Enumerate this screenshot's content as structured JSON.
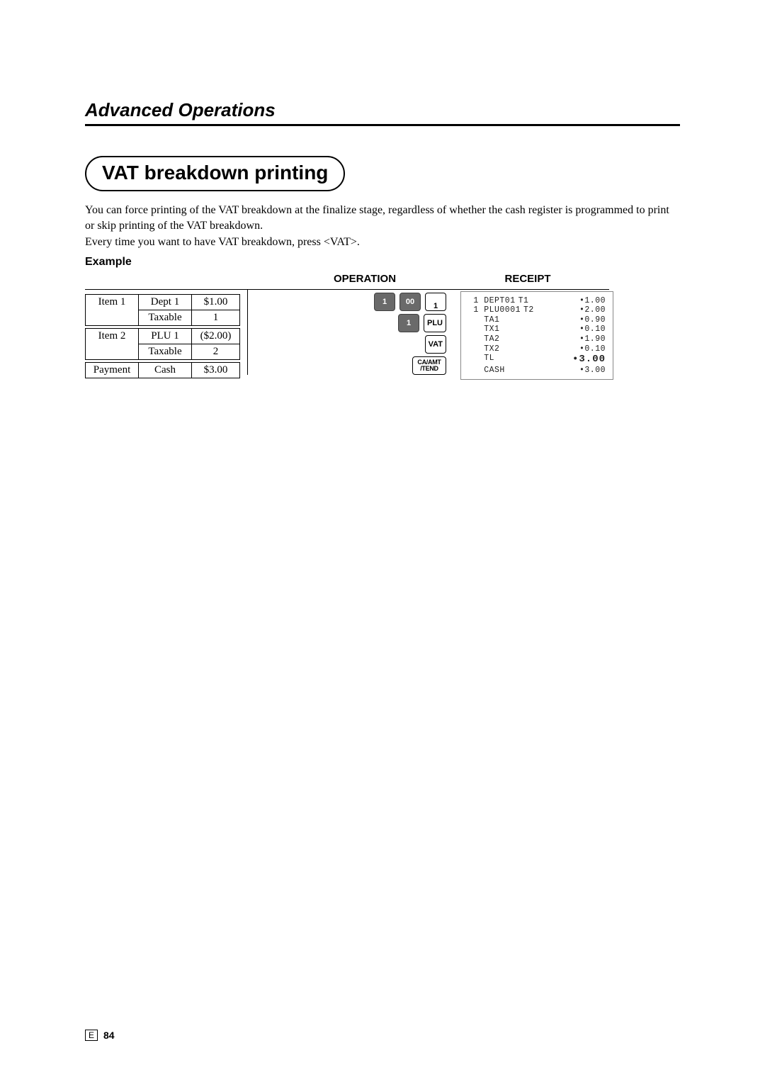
{
  "section_header": "Advanced Operations",
  "title": "VAT breakdown printing",
  "paragraph1": "You can force printing of the VAT breakdown at the finalize stage, regardless of whether the cash register is programmed to print or skip printing of the VAT breakdown.",
  "paragraph2": "Every time you want to have VAT breakdown, press <VAT>.",
  "example_label": "Example",
  "columns": {
    "operation": "OPERATION",
    "receipt": "RECEIPT"
  },
  "input_table": {
    "rows": [
      [
        "Item 1",
        "Dept 1",
        "$1.00"
      ],
      [
        "",
        "Taxable",
        "1"
      ],
      [
        "Item 2",
        "PLU 1",
        "($2.00)"
      ],
      [
        "",
        "Taxable",
        "2"
      ],
      [
        "Payment",
        "Cash",
        "$3.00"
      ]
    ]
  },
  "keys": {
    "k1": "1",
    "k00": "00",
    "dept1": "1",
    "plu": "PLU",
    "vat": "VAT",
    "catend_top": "CA/AMT",
    "catend_bot": "/TEND"
  },
  "receipt": {
    "lines": [
      {
        "l": " 1 DEPT01",
        "m": "T1",
        "r": "•1.00"
      },
      {
        "l": " 1 PLU0001",
        "m": "T2",
        "r": "•2.00"
      },
      {
        "l": "   TA1",
        "m": "",
        "r": "•0.90"
      },
      {
        "l": "   TX1",
        "m": "",
        "r": "•0.10"
      },
      {
        "l": "   TA2",
        "m": "",
        "r": "•1.90"
      },
      {
        "l": "   TX2",
        "m": "",
        "r": "•0.10"
      },
      {
        "l": "   TL",
        "m": "",
        "r": "•3.00",
        "big": true
      },
      {
        "l": "   CASH",
        "m": "",
        "r": "•3.00"
      }
    ]
  },
  "page": {
    "e": "E",
    "num": "84"
  }
}
